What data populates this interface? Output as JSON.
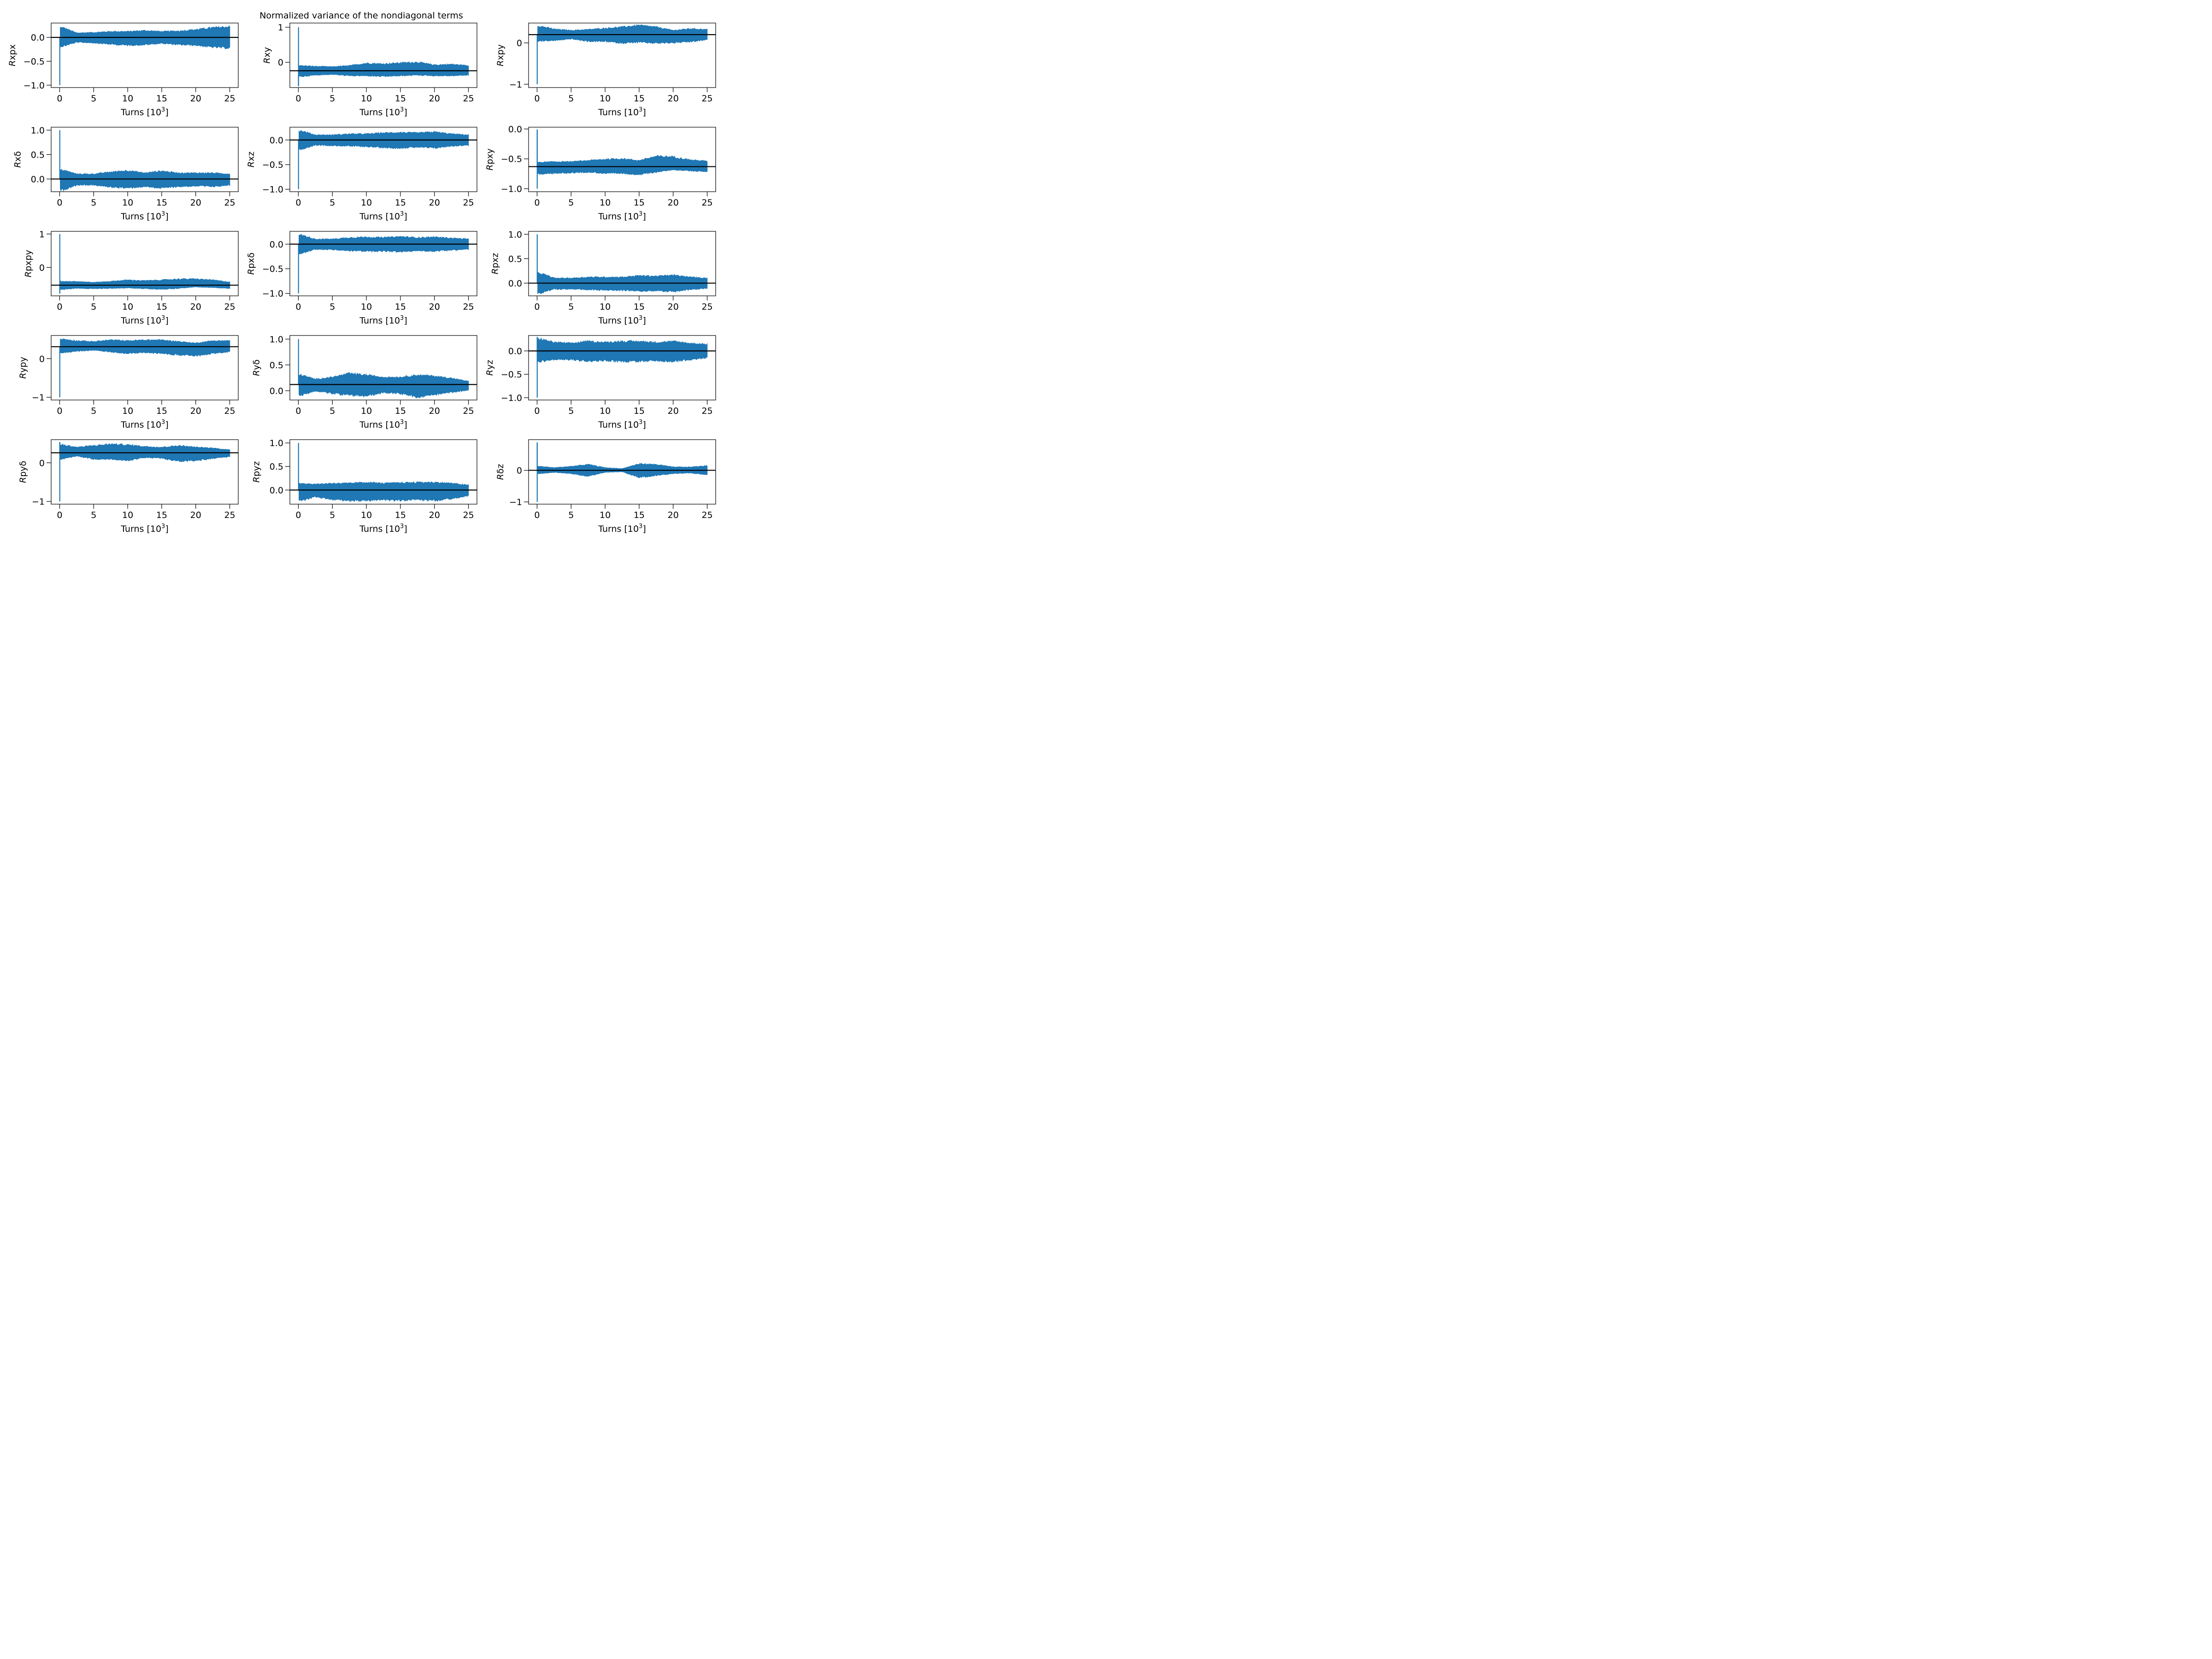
{
  "figure": {
    "title": "Normalized variance of the nondiagonal terms",
    "series_color": "#1f77b4",
    "mean_line_color": "#000000"
  },
  "chart_data": [
    {
      "type": "line",
      "title": "",
      "ylabel": "Rxpx",
      "ylabel_italic": "R",
      "ylabel_rest": "xpx",
      "xlabel": "Turns [10^3]",
      "xlim": [
        -1.25,
        26.25
      ],
      "ylim": [
        -1.05,
        0.3
      ],
      "xticks": [
        0,
        5,
        10,
        15,
        20,
        25
      ],
      "yticks": [
        -1.0,
        -0.5,
        0.0
      ],
      "ytick_labels": [
        "−1.0",
        "−0.5",
        "0.0"
      ],
      "initial_value": -1.0,
      "mean": 0.0,
      "band_upper": [
        0.2,
        0.09,
        0.1,
        0.12,
        0.12,
        0.14,
        0.12,
        0.13,
        0.16,
        0.2,
        0.22
      ],
      "band_lower": [
        -0.18,
        -0.1,
        -0.11,
        -0.14,
        -0.16,
        -0.15,
        -0.12,
        -0.15,
        -0.16,
        -0.2,
        -0.22
      ],
      "band_x": [
        0.5,
        2.5,
        5,
        7.5,
        10,
        12.5,
        15,
        17.5,
        20,
        22.5,
        25
      ]
    },
    {
      "type": "line",
      "ylabel": "Rxy",
      "ylabel_italic": "R",
      "ylabel_rest": "xy",
      "xlabel": "Turns [10^3]",
      "xlim": [
        -1.25,
        26.25
      ],
      "ylim": [
        -0.72,
        1.12
      ],
      "xticks": [
        0,
        5,
        10,
        15,
        20,
        25
      ],
      "yticks": [
        0,
        1
      ],
      "ytick_labels": [
        "0",
        "1"
      ],
      "initial_value": 1.0,
      "initial_min": -0.68,
      "mean": -0.24,
      "band_upper": [
        -0.1,
        -0.12,
        -0.13,
        -0.1,
        -0.03,
        -0.05,
        -0.02,
        0.0,
        -0.08,
        -0.06,
        -0.1
      ],
      "band_lower": [
        -0.4,
        -0.36,
        -0.34,
        -0.38,
        -0.38,
        -0.4,
        -0.38,
        -0.36,
        -0.38,
        -0.38,
        -0.36
      ],
      "band_x": [
        0.5,
        2.5,
        5,
        7.5,
        10,
        12.5,
        15,
        17.5,
        20,
        22.5,
        25
      ]
    },
    {
      "type": "line",
      "ylabel": "Rxpy",
      "ylabel_italic": "R",
      "ylabel_rest": "xpy",
      "xlabel": "Turns [10^3]",
      "xlim": [
        -1.25,
        26.25
      ],
      "ylim": [
        -1.08,
        0.48
      ],
      "xticks": [
        0,
        5,
        10,
        15,
        20,
        25
      ],
      "yticks": [
        -1,
        0
      ],
      "ytick_labels": [
        "−1",
        "0"
      ],
      "initial_value": -1.0,
      "mean": 0.2,
      "band_upper": [
        0.4,
        0.33,
        0.3,
        0.32,
        0.35,
        0.38,
        0.42,
        0.38,
        0.3,
        0.34,
        0.32
      ],
      "band_lower": [
        0.05,
        0.06,
        0.1,
        0.04,
        0.04,
        0.0,
        0.02,
        0.0,
        0.01,
        0.03,
        0.08
      ],
      "band_x": [
        0.5,
        2.5,
        5,
        7.5,
        10,
        12.5,
        15,
        17.5,
        20,
        22.5,
        25
      ]
    },
    {
      "type": "line",
      "ylabel": "R·xδ",
      "ylabel_italic": "R",
      "ylabel_rest": "xδ",
      "xlabel": "Turns [10^3]",
      "xlim": [
        -1.25,
        26.25
      ],
      "ylim": [
        -0.26,
        1.06
      ],
      "xticks": [
        0,
        5,
        10,
        15,
        20,
        25
      ],
      "yticks": [
        0.0,
        0.5,
        1.0
      ],
      "ytick_labels": [
        "0.0",
        "0.5",
        "1.0"
      ],
      "initial_value": 1.0,
      "mean": 0.0,
      "band_upper": [
        0.18,
        0.1,
        0.1,
        0.14,
        0.17,
        0.12,
        0.16,
        0.12,
        0.12,
        0.12,
        0.1
      ],
      "band_lower": [
        -0.22,
        -0.12,
        -0.12,
        -0.16,
        -0.18,
        -0.15,
        -0.18,
        -0.15,
        -0.14,
        -0.15,
        -0.12
      ],
      "band_x": [
        0.5,
        2.5,
        5,
        7.5,
        10,
        12.5,
        15,
        17.5,
        20,
        22.5,
        25
      ]
    },
    {
      "type": "line",
      "ylabel": "Rxz",
      "ylabel_italic": "R",
      "ylabel_rest": "xz",
      "xlabel": "Turns [10^3]",
      "xlim": [
        -1.25,
        26.25
      ],
      "ylim": [
        -1.05,
        0.26
      ],
      "xticks": [
        0,
        5,
        10,
        15,
        20,
        25
      ],
      "yticks": [
        -1.0,
        -0.5,
        0.0
      ],
      "ytick_labels": [
        "−1.0",
        "−0.5",
        "0.0"
      ],
      "initial_value": -1.0,
      "mean": 0.0,
      "band_upper": [
        0.18,
        0.1,
        0.1,
        0.12,
        0.12,
        0.14,
        0.15,
        0.14,
        0.16,
        0.12,
        0.1
      ],
      "band_lower": [
        -0.18,
        -0.1,
        -0.11,
        -0.12,
        -0.13,
        -0.15,
        -0.16,
        -0.14,
        -0.16,
        -0.12,
        -0.1
      ],
      "band_x": [
        0.5,
        2.5,
        5,
        7.5,
        10,
        12.5,
        15,
        17.5,
        20,
        22.5,
        25
      ]
    },
    {
      "type": "line",
      "ylabel": "Rpxy",
      "ylabel_italic": "R",
      "ylabel_rest": "pxy",
      "xlabel": "Turns [10^3]",
      "xlim": [
        -1.25,
        26.25
      ],
      "ylim": [
        -1.05,
        0.03
      ],
      "xticks": [
        0,
        5,
        10,
        15,
        20,
        25
      ],
      "yticks": [
        -1.0,
        -0.5,
        0.0
      ],
      "ytick_labels": [
        "−1.0",
        "−0.5",
        "0.0"
      ],
      "initial_value": -1.0,
      "initial_max": -0.01,
      "mean": -0.63,
      "band_upper": [
        -0.56,
        -0.55,
        -0.55,
        -0.53,
        -0.51,
        -0.5,
        -0.53,
        -0.46,
        -0.47,
        -0.52,
        -0.54
      ],
      "band_lower": [
        -0.75,
        -0.74,
        -0.73,
        -0.72,
        -0.74,
        -0.74,
        -0.76,
        -0.72,
        -0.68,
        -0.7,
        -0.71
      ],
      "band_x": [
        0.5,
        2.5,
        5,
        7.5,
        10,
        12.5,
        15,
        17.5,
        20,
        22.5,
        25
      ]
    },
    {
      "type": "line",
      "ylabel": "Rpxpy",
      "ylabel_italic": "R",
      "ylabel_rest": "pxpy",
      "xlabel": "Turns [10^3]",
      "xlim": [
        -1.25,
        26.25
      ],
      "ylim": [
        -0.85,
        1.08
      ],
      "xticks": [
        0,
        5,
        10,
        15,
        20,
        25
      ],
      "yticks": [
        0,
        1
      ],
      "ytick_labels": [
        "0",
        "1"
      ],
      "initial_value": 1.0,
      "initial_min": -0.78,
      "mean": -0.53,
      "band_upper": [
        -0.42,
        -0.42,
        -0.45,
        -0.42,
        -0.38,
        -0.4,
        -0.38,
        -0.35,
        -0.35,
        -0.38,
        -0.44
      ],
      "band_lower": [
        -0.65,
        -0.62,
        -0.63,
        -0.62,
        -0.61,
        -0.63,
        -0.65,
        -0.62,
        -0.58,
        -0.6,
        -0.62
      ],
      "band_x": [
        0.5,
        2.5,
        5,
        7.5,
        10,
        12.5,
        15,
        17.5,
        20,
        22.5,
        25
      ]
    },
    {
      "type": "line",
      "ylabel": "Rpxδ",
      "ylabel_italic": "R",
      "ylabel_rest": "pxδ",
      "xlabel": "Turns [10^3]",
      "xlim": [
        -1.25,
        26.25
      ],
      "ylim": [
        -1.05,
        0.26
      ],
      "xticks": [
        0,
        5,
        10,
        15,
        20,
        25
      ],
      "yticks": [
        -1.0,
        -0.5,
        0.0
      ],
      "ytick_labels": [
        "−1.0",
        "−0.5",
        "0.0"
      ],
      "initial_value": -1.0,
      "mean": 0.0,
      "band_upper": [
        0.18,
        0.1,
        0.1,
        0.13,
        0.14,
        0.13,
        0.15,
        0.13,
        0.14,
        0.12,
        0.1
      ],
      "band_lower": [
        -0.18,
        -0.1,
        -0.11,
        -0.13,
        -0.14,
        -0.14,
        -0.15,
        -0.13,
        -0.14,
        -0.12,
        -0.1
      ],
      "band_x": [
        0.5,
        2.5,
        5,
        7.5,
        10,
        12.5,
        15,
        17.5,
        20,
        22.5,
        25
      ]
    },
    {
      "type": "line",
      "ylabel": "Rpxz",
      "ylabel_italic": "R",
      "ylabel_rest": "pxz",
      "xlabel": "Turns [10^3]",
      "xlim": [
        -1.25,
        26.25
      ],
      "ylim": [
        -0.26,
        1.06
      ],
      "xticks": [
        0,
        5,
        10,
        15,
        20,
        25
      ],
      "yticks": [
        0.0,
        0.5,
        1.0
      ],
      "ytick_labels": [
        "0.0",
        "0.5",
        "1.0"
      ],
      "initial_value": 1.0,
      "mean": 0.0,
      "band_upper": [
        0.2,
        0.1,
        0.1,
        0.12,
        0.12,
        0.12,
        0.15,
        0.14,
        0.16,
        0.12,
        0.1
      ],
      "band_lower": [
        -0.2,
        -0.12,
        -0.12,
        -0.13,
        -0.14,
        -0.14,
        -0.16,
        -0.15,
        -0.17,
        -0.13,
        -0.1
      ],
      "band_x": [
        0.5,
        2.5,
        5,
        7.5,
        10,
        12.5,
        15,
        17.5,
        20,
        22.5,
        25
      ]
    },
    {
      "type": "line",
      "ylabel": "Rypy",
      "ylabel_italic": "R",
      "ylabel_rest": "ypy",
      "xlabel": "Turns [10^3]",
      "xlim": [
        -1.25,
        26.25
      ],
      "ylim": [
        -1.07,
        0.6
      ],
      "xticks": [
        0,
        5,
        10,
        15,
        20,
        25
      ],
      "yticks": [
        -1,
        0
      ],
      "ytick_labels": [
        "−1",
        "0"
      ],
      "initial_value": -1.0,
      "mean": 0.31,
      "band_upper": [
        0.5,
        0.46,
        0.44,
        0.48,
        0.46,
        0.48,
        0.48,
        0.44,
        0.4,
        0.46,
        0.46
      ],
      "band_lower": [
        0.16,
        0.2,
        0.22,
        0.18,
        0.14,
        0.16,
        0.14,
        0.1,
        0.08,
        0.14,
        0.18
      ],
      "band_x": [
        0.5,
        2.5,
        5,
        7.5,
        10,
        12.5,
        15,
        17.5,
        20,
        22.5,
        25
      ]
    },
    {
      "type": "line",
      "ylabel": "Ryδ",
      "ylabel_italic": "R",
      "ylabel_rest": "yδ",
      "xlabel": "Turns [10^3]",
      "xlim": [
        -1.25,
        26.25
      ],
      "ylim": [
        -0.18,
        1.07
      ],
      "xticks": [
        0,
        5,
        10,
        15,
        20,
        25
      ],
      "yticks": [
        0.0,
        0.5,
        1.0
      ],
      "ytick_labels": [
        "0.0",
        "0.5",
        "1.0"
      ],
      "initial_value": 1.0,
      "mean": 0.12,
      "band_upper": [
        0.3,
        0.22,
        0.26,
        0.33,
        0.3,
        0.26,
        0.26,
        0.3,
        0.28,
        0.24,
        0.18
      ],
      "band_lower": [
        -0.08,
        0.0,
        -0.05,
        -0.08,
        -0.1,
        -0.03,
        -0.05,
        -0.12,
        -0.07,
        -0.03,
        0.02
      ],
      "band_x": [
        0.5,
        2.5,
        5,
        7.5,
        10,
        12.5,
        15,
        17.5,
        20,
        22.5,
        25
      ]
    },
    {
      "type": "line",
      "ylabel": "Ryz",
      "ylabel_italic": "R",
      "ylabel_rest": "yz",
      "xlabel": "Turns [10^3]",
      "xlim": [
        -1.25,
        26.25
      ],
      "ylim": [
        -1.05,
        0.33
      ],
      "xticks": [
        0,
        5,
        10,
        15,
        20,
        25
      ],
      "yticks": [
        -1.0,
        -0.5,
        0.0
      ],
      "ytick_labels": [
        "−1.0",
        "−0.5",
        "0.0"
      ],
      "initial_value": -1.0,
      "initial_max": 0.3,
      "mean": 0.0,
      "band_upper": [
        0.25,
        0.18,
        0.16,
        0.2,
        0.18,
        0.2,
        0.2,
        0.18,
        0.2,
        0.16,
        0.14
      ],
      "band_lower": [
        -0.22,
        -0.18,
        -0.18,
        -0.22,
        -0.2,
        -0.22,
        -0.22,
        -0.2,
        -0.22,
        -0.18,
        -0.14
      ],
      "band_x": [
        0.5,
        2.5,
        5,
        7.5,
        10,
        12.5,
        15,
        17.5,
        20,
        22.5,
        25
      ]
    },
    {
      "type": "line",
      "ylabel": "Rpyδ",
      "ylabel_italic": "R",
      "ylabel_rest": "pyδ",
      "xlabel": "Turns [10^3]",
      "xlim": [
        -1.25,
        26.25
      ],
      "ylim": [
        -1.07,
        0.6
      ],
      "xticks": [
        0,
        5,
        10,
        15,
        20,
        25
      ],
      "yticks": [
        -1,
        0
      ],
      "ytick_labels": [
        "−1",
        "0"
      ],
      "initial_value": -1.0,
      "initial_max": 0.54,
      "mean": 0.26,
      "band_upper": [
        0.46,
        0.4,
        0.44,
        0.48,
        0.46,
        0.42,
        0.4,
        0.44,
        0.4,
        0.38,
        0.33
      ],
      "band_lower": [
        0.1,
        0.18,
        0.1,
        0.1,
        0.06,
        0.14,
        0.12,
        0.04,
        0.06,
        0.12,
        0.16
      ],
      "band_x": [
        0.5,
        2.5,
        5,
        7.5,
        10,
        12.5,
        15,
        17.5,
        20,
        22.5,
        25
      ]
    },
    {
      "type": "line",
      "ylabel": "Rpyz",
      "ylabel_italic": "R",
      "ylabel_rest": "pyz",
      "xlabel": "Turns [10^3]",
      "xlim": [
        -1.25,
        26.25
      ],
      "ylim": [
        -0.3,
        1.07
      ],
      "xticks": [
        0,
        5,
        10,
        15,
        20,
        25
      ],
      "yticks": [
        0.0,
        0.5,
        1.0
      ],
      "ytick_labels": [
        "0.0",
        "0.5",
        "1.0"
      ],
      "initial_value": 1.0,
      "mean": 0.0,
      "band_upper": [
        0.14,
        0.12,
        0.14,
        0.14,
        0.16,
        0.14,
        0.15,
        0.16,
        0.16,
        0.14,
        0.1
      ],
      "band_lower": [
        -0.22,
        -0.14,
        -0.2,
        -0.22,
        -0.22,
        -0.2,
        -0.22,
        -0.2,
        -0.22,
        -0.18,
        -0.12
      ],
      "band_x": [
        0.5,
        2.5,
        5,
        7.5,
        10,
        12.5,
        15,
        17.5,
        20,
        22.5,
        25
      ]
    },
    {
      "type": "line",
      "ylabel": "Rδz",
      "ylabel_italic": "R",
      "ylabel_rest": "δz",
      "xlabel": "Turns [10^3]",
      "xlim": [
        -1.25,
        26.25
      ],
      "ylim": [
        -1.07,
        0.97
      ],
      "xticks": [
        0,
        5,
        10,
        15,
        20,
        25
      ],
      "yticks": [
        -1,
        0
      ],
      "ytick_labels": [
        "−1",
        "0"
      ],
      "initial_value": -1.0,
      "initial_max": 0.88,
      "mean": 0.0,
      "band_upper": [
        0.12,
        0.08,
        0.12,
        0.18,
        0.08,
        0.05,
        0.2,
        0.18,
        0.1,
        0.1,
        0.14
      ],
      "band_lower": [
        -0.1,
        -0.06,
        -0.1,
        -0.18,
        -0.06,
        -0.04,
        -0.22,
        -0.16,
        -0.1,
        -0.08,
        -0.14
      ],
      "band_x": [
        0.5,
        2.5,
        5,
        7.5,
        10,
        12.5,
        15,
        17.5,
        20,
        22.5,
        25
      ]
    }
  ]
}
